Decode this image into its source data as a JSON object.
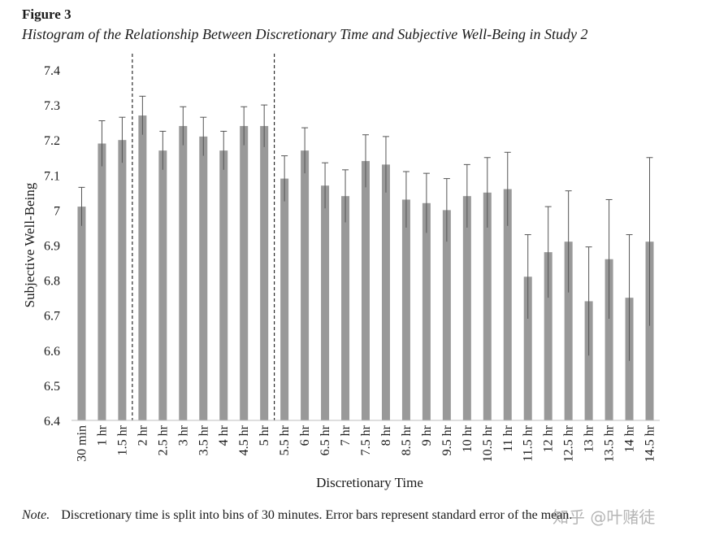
{
  "figure": {
    "label": "Figure 3",
    "title": "Histogram of the Relationship Between Discretionary Time and Subjective Well-Being in Study 2"
  },
  "note": {
    "label": "Note.",
    "text": "Discretionary time is split into bins of 30 minutes. Error bars represent standard error of the mean."
  },
  "watermark": "知乎 @叶赌徒",
  "colors": {
    "bar": "#999999",
    "error_bar": "#555555",
    "axis": "#bfbfbf",
    "divider": "#000000"
  },
  "chart_data": {
    "type": "bar",
    "xlabel": "Discretionary Time",
    "ylabel": "Subjective Well-Being",
    "ylim": [
      6.4,
      7.4
    ],
    "yticks": [
      "6.4",
      "6.5",
      "6.6",
      "6.7",
      "6.8",
      "6.9",
      "7",
      "7.1",
      "7.2",
      "7.3",
      "7.4"
    ],
    "grid": false,
    "dashed_dividers_between": [
      [
        "1.5 hr",
        "2 hr"
      ],
      [
        "5 hr",
        "5.5 hr"
      ]
    ],
    "categories": [
      "30 min",
      "1 hr",
      "1.5 hr",
      "2 hr",
      "2.5 hr",
      "3 hr",
      "3.5 hr",
      "4 hr",
      "4.5 hr",
      "5 hr",
      "5.5 hr",
      "6 hr",
      "6.5 hr",
      "7 hr",
      "7.5 hr",
      "8 hr",
      "8.5 hr",
      "9 hr",
      "9.5 hr",
      "10 hr",
      "10.5 hr",
      "11 hr",
      "11.5 hr",
      "12 hr",
      "12.5 hr",
      "13 hr",
      "13.5 hr",
      "14 hr",
      "14.5 hr"
    ],
    "values": [
      7.01,
      7.19,
      7.2,
      7.27,
      7.17,
      7.24,
      7.21,
      7.17,
      7.24,
      7.24,
      7.09,
      7.17,
      7.07,
      7.04,
      7.14,
      7.13,
      7.03,
      7.02,
      7.0,
      7.04,
      7.05,
      7.06,
      6.81,
      6.88,
      6.91,
      6.74,
      6.86,
      6.75,
      6.91
    ],
    "error": [
      0.055,
      0.065,
      0.065,
      0.055,
      0.055,
      0.055,
      0.055,
      0.055,
      0.055,
      0.06,
      0.065,
      0.065,
      0.065,
      0.075,
      0.075,
      0.08,
      0.08,
      0.085,
      0.09,
      0.09,
      0.1,
      0.105,
      0.12,
      0.13,
      0.145,
      0.155,
      0.17,
      0.18,
      0.24
    ]
  }
}
